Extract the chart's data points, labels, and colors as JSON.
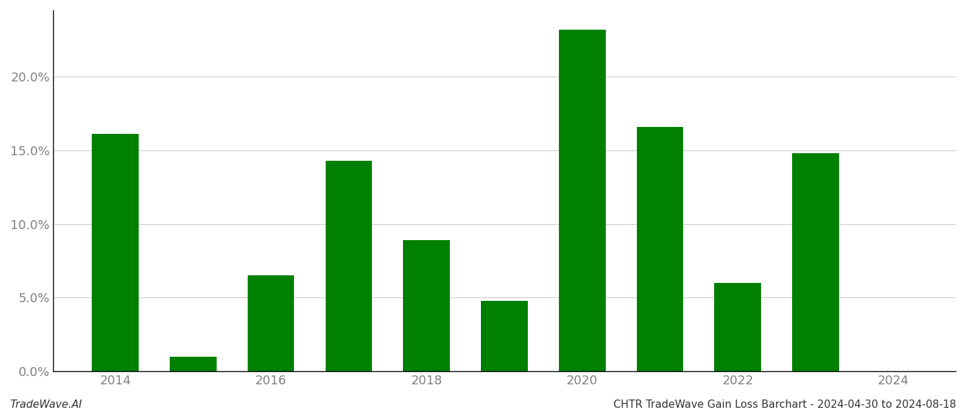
{
  "years": [
    2014,
    2015,
    2016,
    2017,
    2018,
    2019,
    2020,
    2021,
    2022,
    2023,
    2024
  ],
  "values": [
    0.161,
    0.01,
    0.065,
    0.143,
    0.089,
    0.048,
    0.232,
    0.166,
    0.06,
    0.148,
    0.0
  ],
  "bar_color": "#008000",
  "background_color": "#ffffff",
  "ylim": [
    0,
    0.245
  ],
  "yticks": [
    0.0,
    0.05,
    0.1,
    0.15,
    0.2
  ],
  "ytick_labels": [
    "0.0%",
    "5.0%",
    "10.0%",
    "15.0%",
    "20.0%"
  ],
  "footer_left": "TradeWave.AI",
  "footer_right": "CHTR TradeWave Gain Loss Barchart - 2024-04-30 to 2024-08-18",
  "grid_color": "#cccccc",
  "tick_color": "#808080",
  "axis_color": "#000000",
  "bar_width": 0.6,
  "tick_fontsize": 13,
  "footer_fontsize": 11
}
